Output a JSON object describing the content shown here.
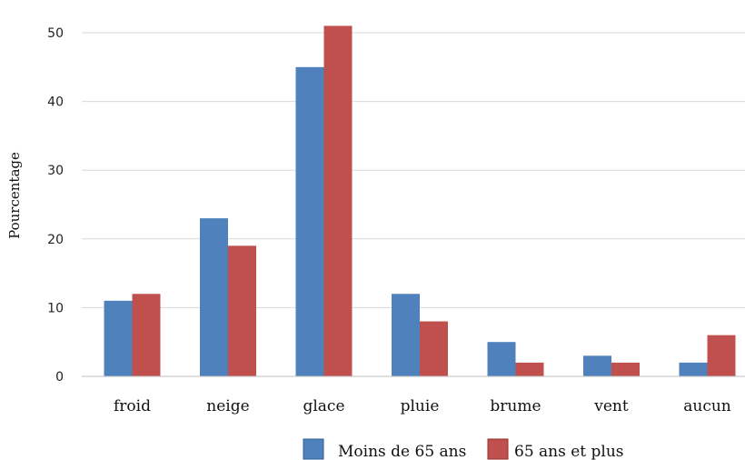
{
  "chart_data": {
    "type": "bar",
    "categories": [
      "froid",
      "neige",
      "glace",
      "pluie",
      "brume",
      "vent",
      "aucun"
    ],
    "series": [
      {
        "name": "Moins de 65 ans",
        "values": [
          11,
          23,
          45,
          12,
          5,
          3,
          2
        ],
        "color": "#4f81bd"
      },
      {
        "name": "65 ans et plus",
        "values": [
          12,
          19,
          51,
          8,
          2,
          2,
          6
        ],
        "color": "#c0504d"
      }
    ],
    "ylabel": "Pourcentage",
    "ylim": [
      0,
      50
    ],
    "yticks": [
      0,
      10,
      20,
      30,
      40,
      50
    ],
    "grid": true,
    "legend_position": "bottom-right"
  }
}
